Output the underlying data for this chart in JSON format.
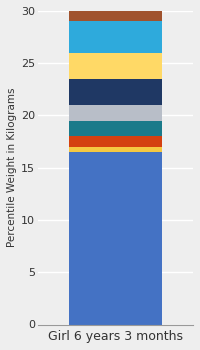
{
  "categories": [
    "Girl 6 years 3 months"
  ],
  "segments": [
    {
      "label": "base_blue",
      "value": 16.5,
      "color": "#4472C4"
    },
    {
      "label": "gold_thin",
      "value": 0.5,
      "color": "#F5C842"
    },
    {
      "label": "orange_red",
      "value": 1.0,
      "color": "#D44010"
    },
    {
      "label": "teal",
      "value": 1.5,
      "color": "#1A7A8A"
    },
    {
      "label": "gray",
      "value": 1.5,
      "color": "#B8BEC8"
    },
    {
      "label": "dark_navy",
      "value": 2.5,
      "color": "#1F3864"
    },
    {
      "label": "yellow",
      "value": 2.5,
      "color": "#FFD966"
    },
    {
      "label": "cyan",
      "value": 3.0,
      "color": "#2EAADC"
    },
    {
      "label": "brown",
      "value": 1.0,
      "color": "#A0522D"
    }
  ],
  "ylabel": "Percentile Weight in Kilograms",
  "ylim": [
    0,
    30
  ],
  "yticks": [
    0,
    5,
    10,
    15,
    20,
    25,
    30
  ],
  "bg_color": "#EEEEEE",
  "bar_width": 0.6,
  "ylabel_fontsize": 7.5,
  "tick_fontsize": 8,
  "xlabel_fontsize": 9
}
